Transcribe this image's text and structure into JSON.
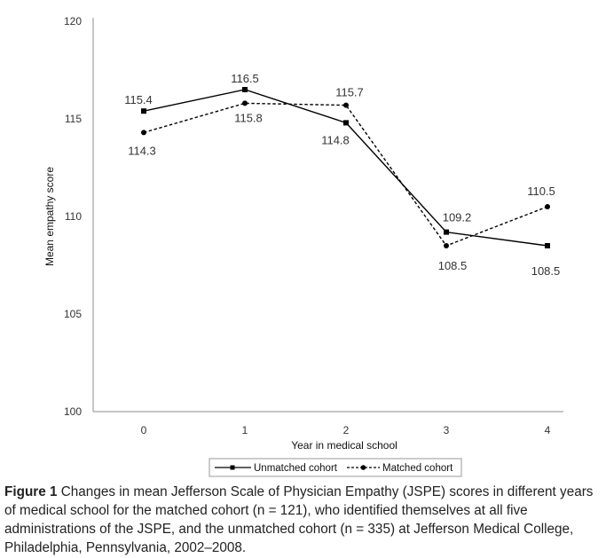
{
  "chart_data": {
    "type": "line",
    "title": "",
    "xlabel": "Year in medical school",
    "ylabel": "Mean empathy score",
    "categories": [
      "0",
      "1",
      "2",
      "3",
      "4"
    ],
    "ylim": [
      100,
      120
    ],
    "yticks": [
      "100",
      "105",
      "110",
      "115",
      "120"
    ],
    "grid": false,
    "legend_position": "bottom",
    "series": [
      {
        "name": "Unmatched cohort",
        "values": [
          115.4,
          116.5,
          114.8,
          109.2,
          108.5
        ],
        "labels": [
          "115.4",
          "116.5",
          "114.8",
          "109.2",
          "108.5"
        ],
        "style": "solid",
        "marker": "square",
        "color": "#000000"
      },
      {
        "name": "Matched cohort",
        "values": [
          114.3,
          115.8,
          115.7,
          108.5,
          110.5
        ],
        "labels": [
          "114.3",
          "115.8",
          "115.7",
          "108.5",
          "110.5"
        ],
        "style": "dashed",
        "marker": "circle",
        "color": "#000000"
      }
    ]
  },
  "caption": {
    "figure_label": "Figure 1",
    "text": "Changes in mean Jefferson Scale of Physician Empathy (JSPE) scores in different years of medical school for the matched cohort (n = 121), who identified themselves at all five administrations of the JSPE, and the unmatched cohort (n = 335) at Jefferson Medical College, Philadelphia, Pennsylvania, 2002–2008."
  }
}
